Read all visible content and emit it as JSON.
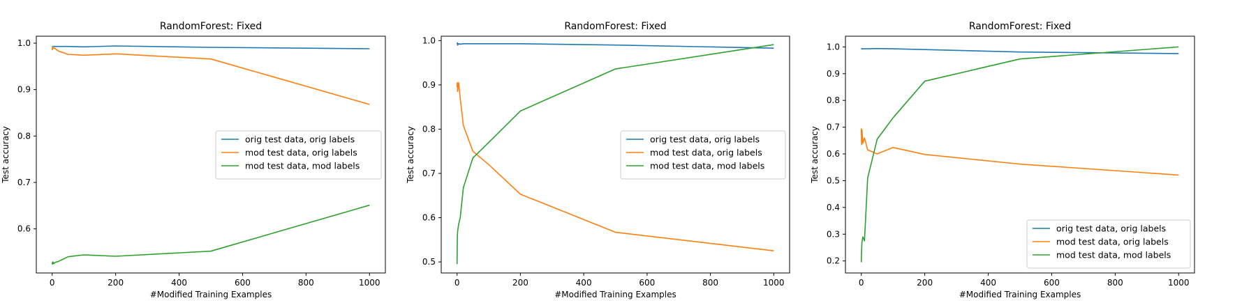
{
  "colors": {
    "series": [
      "#1f77b4",
      "#ff7f0e",
      "#2ca02c"
    ],
    "axis": "#000000",
    "legend_edge": "#cccccc"
  },
  "chart_data": [
    {
      "type": "line",
      "title": "RandomForest: Fixed",
      "xlabel": "#Modified Training Examples",
      "ylabel": "Test accuracy",
      "xlim": [
        -50,
        1050
      ],
      "ylim": [
        0.505,
        1.015
      ],
      "xticks": [
        0,
        200,
        400,
        600,
        800,
        1000
      ],
      "yticks": [
        0.6,
        0.7,
        0.8,
        0.9,
        1.0
      ],
      "ytick_labels": [
        "0.6",
        "0.7",
        "0.8",
        "0.9",
        "1.0"
      ],
      "legend_loc": "center-right",
      "series": [
        {
          "name": "orig test data, orig labels",
          "x": [
            0,
            1,
            2,
            5,
            10,
            20,
            50,
            100,
            200,
            500,
            1000
          ],
          "y": [
            0.993,
            0.993,
            0.993,
            0.993,
            0.993,
            0.993,
            0.993,
            0.992,
            0.994,
            0.991,
            0.988
          ]
        },
        {
          "name": "mod test data, orig labels",
          "x": [
            0,
            1,
            2,
            5,
            10,
            20,
            50,
            100,
            200,
            500,
            1000
          ],
          "y": [
            0.985,
            0.992,
            0.988,
            0.99,
            0.988,
            0.983,
            0.976,
            0.974,
            0.977,
            0.966,
            0.868
          ]
        },
        {
          "name": "mod test data, mod labels",
          "x": [
            0,
            1,
            2,
            5,
            10,
            20,
            50,
            100,
            200,
            500,
            1000
          ],
          "y": [
            0.527,
            0.524,
            0.529,
            0.525,
            0.528,
            0.53,
            0.54,
            0.544,
            0.541,
            0.552,
            0.651
          ]
        }
      ]
    },
    {
      "type": "line",
      "title": "RandomForest: Fixed",
      "xlabel": "#Modified Training Examples",
      "ylabel": "Test accuracy",
      "xlim": [
        -50,
        1050
      ],
      "ylim": [
        0.475,
        1.01
      ],
      "xticks": [
        0,
        200,
        400,
        600,
        800,
        1000
      ],
      "yticks": [
        0.5,
        0.6,
        0.7,
        0.8,
        0.9,
        1.0
      ],
      "ytick_labels": [
        "0.5",
        "0.6",
        "0.7",
        "0.8",
        "0.9",
        "1.0"
      ],
      "legend_loc": "center-right",
      "series": [
        {
          "name": "orig test data, orig labels",
          "x": [
            0,
            1,
            2,
            5,
            10,
            20,
            50,
            100,
            200,
            500,
            1000
          ],
          "y": [
            0.993,
            0.995,
            0.99,
            0.993,
            0.992,
            0.993,
            0.993,
            0.993,
            0.993,
            0.99,
            0.983
          ]
        },
        {
          "name": "mod test data, orig labels",
          "x": [
            0,
            1,
            2,
            5,
            10,
            20,
            50,
            100,
            200,
            500,
            1000
          ],
          "y": [
            0.895,
            0.905,
            0.885,
            0.905,
            0.87,
            0.808,
            0.75,
            0.72,
            0.653,
            0.567,
            0.525
          ]
        },
        {
          "name": "mod test data, mod labels",
          "x": [
            0,
            1,
            2,
            5,
            10,
            20,
            50,
            100,
            200,
            500,
            1000
          ],
          "y": [
            0.495,
            0.56,
            0.57,
            0.585,
            0.6,
            0.668,
            0.735,
            0.77,
            0.841,
            0.936,
            0.991
          ]
        }
      ]
    },
    {
      "type": "line",
      "title": "RandomForest: Fixed",
      "xlabel": "#Modified Training Examples",
      "ylabel": "Test accuracy",
      "xlim": [
        -50,
        1050
      ],
      "ylim": [
        0.155,
        1.04
      ],
      "xticks": [
        0,
        200,
        400,
        600,
        800,
        1000
      ],
      "yticks": [
        0.2,
        0.3,
        0.4,
        0.5,
        0.6,
        0.7,
        0.8,
        0.9,
        1.0
      ],
      "ytick_labels": [
        "0.2",
        "0.3",
        "0.4",
        "0.5",
        "0.6",
        "0.7",
        "0.8",
        "0.9",
        "1.0"
      ],
      "legend_loc": "lower-right",
      "series": [
        {
          "name": "orig test data, orig labels",
          "x": [
            0,
            1,
            2,
            5,
            10,
            20,
            50,
            100,
            200,
            500,
            1000
          ],
          "y": [
            0.993,
            0.994,
            0.992,
            0.993,
            0.993,
            0.993,
            0.994,
            0.993,
            0.99,
            0.981,
            0.975
          ]
        },
        {
          "name": "mod test data, orig labels",
          "x": [
            0,
            1,
            2,
            5,
            10,
            20,
            50,
            100,
            200,
            500,
            1000
          ],
          "y": [
            0.695,
            0.635,
            0.69,
            0.64,
            0.66,
            0.615,
            0.6,
            0.624,
            0.598,
            0.562,
            0.521
          ]
        },
        {
          "name": "mod test data, mod labels",
          "x": [
            0,
            1,
            2,
            5,
            10,
            20,
            50,
            100,
            200,
            500,
            1000
          ],
          "y": [
            0.195,
            0.24,
            0.27,
            0.29,
            0.275,
            0.51,
            0.655,
            0.735,
            0.872,
            0.955,
            1.0
          ]
        }
      ]
    }
  ]
}
